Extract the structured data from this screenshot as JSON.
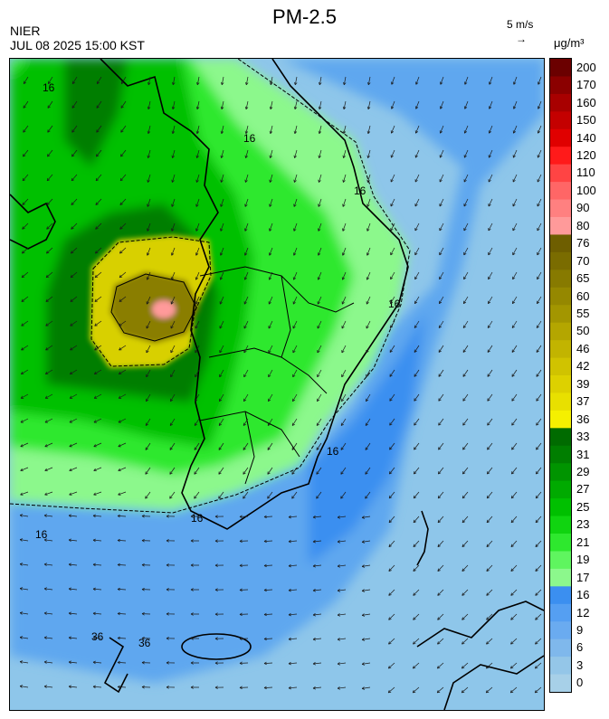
{
  "header": {
    "title": "PM-2.5",
    "org": "NIER",
    "datetime": "JUL 08 2025 15:00 KST",
    "wind_scale": "5 m/s",
    "wind_scale_arrow": "→",
    "unit": "μg/m³"
  },
  "legend": {
    "levels": [
      {
        "label": "200",
        "color": "#6b0000"
      },
      {
        "label": "170",
        "color": "#8b0000"
      },
      {
        "label": "160",
        "color": "#a80000"
      },
      {
        "label": "150",
        "color": "#c40000"
      },
      {
        "label": "140",
        "color": "#e00000"
      },
      {
        "label": "120",
        "color": "#ff1a1a"
      },
      {
        "label": "110",
        "color": "#ff4444"
      },
      {
        "label": "100",
        "color": "#ff6666"
      },
      {
        "label": "90",
        "color": "#ff8080"
      },
      {
        "label": "80",
        "color": "#ff9a9a"
      },
      {
        "label": "76",
        "color": "#6e5e00"
      },
      {
        "label": "70",
        "color": "#7a6c00"
      },
      {
        "label": "65",
        "color": "#877a00"
      },
      {
        "label": "60",
        "color": "#958800"
      },
      {
        "label": "55",
        "color": "#a39600"
      },
      {
        "label": "50",
        "color": "#b4a600"
      },
      {
        "label": "46",
        "color": "#c2b400"
      },
      {
        "label": "42",
        "color": "#d0c300"
      },
      {
        "label": "39",
        "color": "#ddd100"
      },
      {
        "label": "37",
        "color": "#e8e000"
      },
      {
        "label": "36",
        "color": "#f5f000"
      },
      {
        "label": "33",
        "color": "#006b00"
      },
      {
        "label": "31",
        "color": "#007e00"
      },
      {
        "label": "29",
        "color": "#009400"
      },
      {
        "label": "27",
        "color": "#00aa00"
      },
      {
        "label": "25",
        "color": "#00c000"
      },
      {
        "label": "23",
        "color": "#10d410"
      },
      {
        "label": "21",
        "color": "#2ee82e"
      },
      {
        "label": "19",
        "color": "#5ff55f"
      },
      {
        "label": "17",
        "color": "#8cf88c"
      },
      {
        "label": "16",
        "color": "#3b8ff0"
      },
      {
        "label": "12",
        "color": "#559ff2"
      },
      {
        "label": "9",
        "color": "#6aabf0"
      },
      {
        "label": "6",
        "color": "#7fb8ec"
      },
      {
        "label": "3",
        "color": "#94c6e8"
      },
      {
        "label": "0",
        "color": "#a7d0e8"
      }
    ]
  },
  "map": {
    "contour_labels": [
      "16",
      "16",
      "16",
      "16",
      "16",
      "16",
      "16",
      "36",
      "36"
    ],
    "colors": {
      "sea_light": "#8ec6ea",
      "sea_mid": "#5fa7ef",
      "sea_dark": "#3b8ff0",
      "green_light": "#8cf88c",
      "green_mid": "#2ee82e",
      "green": "#00c000",
      "green_dark": "#007e00",
      "yellow": "#d8d000",
      "olive": "#8a7e00",
      "pink": "#ff9a9a"
    }
  }
}
